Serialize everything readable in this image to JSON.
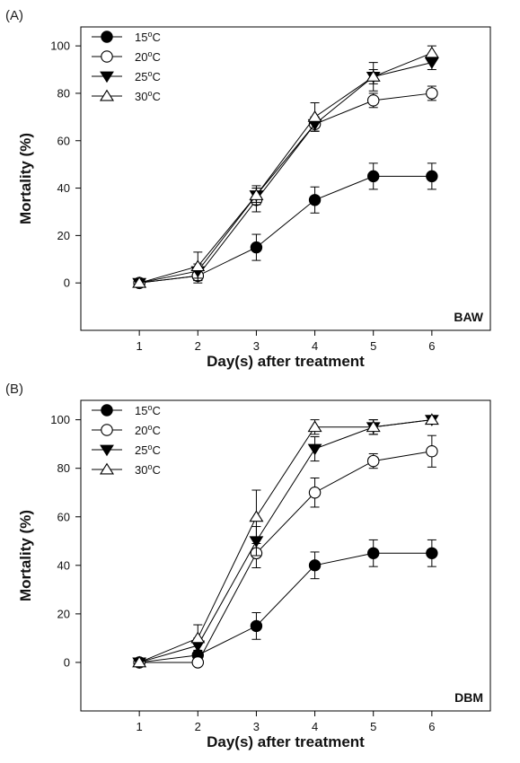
{
  "chart_data": [
    {
      "type": "line",
      "panel_label": "(A)",
      "corner_tag": "BAW",
      "xlabel": "Day(s) after treatment",
      "ylabel": "Mortality (%)",
      "x": [
        1,
        2,
        3,
        4,
        5,
        6
      ],
      "xlim": [
        0,
        7
      ],
      "ylim": [
        -20,
        108
      ],
      "yticks": [
        0,
        20,
        40,
        60,
        80,
        100
      ],
      "xticks": [
        1,
        2,
        3,
        4,
        5,
        6
      ],
      "grid": false,
      "legend_position": "top-left",
      "series": [
        {
          "name": "15°C",
          "base": "15",
          "marker": "circle-filled",
          "values": [
            0,
            3,
            15,
            35,
            45,
            45
          ],
          "errors": [
            0,
            2,
            5.5,
            5.5,
            5.5,
            5.5
          ]
        },
        {
          "name": "20°C",
          "base": "20",
          "marker": "circle-open",
          "values": [
            0,
            3,
            35,
            67,
            77,
            80
          ],
          "errors": [
            0,
            3,
            5,
            3,
            3,
            3
          ]
        },
        {
          "name": "25°C",
          "base": "25",
          "marker": "triangle-down-filled",
          "values": [
            0,
            5,
            37,
            67,
            87,
            93
          ],
          "errors": [
            0,
            3,
            3,
            3,
            6,
            3
          ]
        },
        {
          "name": "30°C",
          "base": "30",
          "marker": "triangle-up-open",
          "values": [
            0,
            7,
            37,
            70,
            87,
            97
          ],
          "errors": [
            0,
            6,
            4,
            6,
            3,
            3
          ]
        }
      ]
    },
    {
      "type": "line",
      "panel_label": "(B)",
      "corner_tag": "DBM",
      "xlabel": "Day(s) after treatment",
      "ylabel": "Mortality (%)",
      "x": [
        1,
        2,
        3,
        4,
        5,
        6
      ],
      "xlim": [
        0,
        7
      ],
      "ylim": [
        -20,
        108
      ],
      "yticks": [
        0,
        20,
        40,
        60,
        80,
        100
      ],
      "xticks": [
        1,
        2,
        3,
        4,
        5,
        6
      ],
      "grid": false,
      "legend_position": "top-left",
      "series": [
        {
          "name": "15°C",
          "base": "15",
          "marker": "circle-filled",
          "values": [
            0,
            3,
            15,
            40,
            45,
            45
          ],
          "errors": [
            0,
            2,
            5.5,
            5.5,
            5.5,
            5.5
          ]
        },
        {
          "name": "20°C",
          "base": "20",
          "marker": "circle-open",
          "values": [
            0,
            0,
            45,
            70,
            83,
            87
          ],
          "errors": [
            0,
            0,
            6,
            6,
            3,
            6.5
          ]
        },
        {
          "name": "25°C",
          "base": "25",
          "marker": "triangle-down-filled",
          "values": [
            0,
            7,
            50,
            88,
            97,
            100
          ],
          "errors": [
            0,
            3,
            6,
            5,
            3,
            0
          ]
        },
        {
          "name": "30°C",
          "base": "30",
          "marker": "triangle-up-open",
          "values": [
            0,
            10,
            60,
            97,
            97,
            100
          ],
          "errors": [
            0,
            5.5,
            11,
            3,
            3,
            0
          ]
        }
      ]
    }
  ]
}
